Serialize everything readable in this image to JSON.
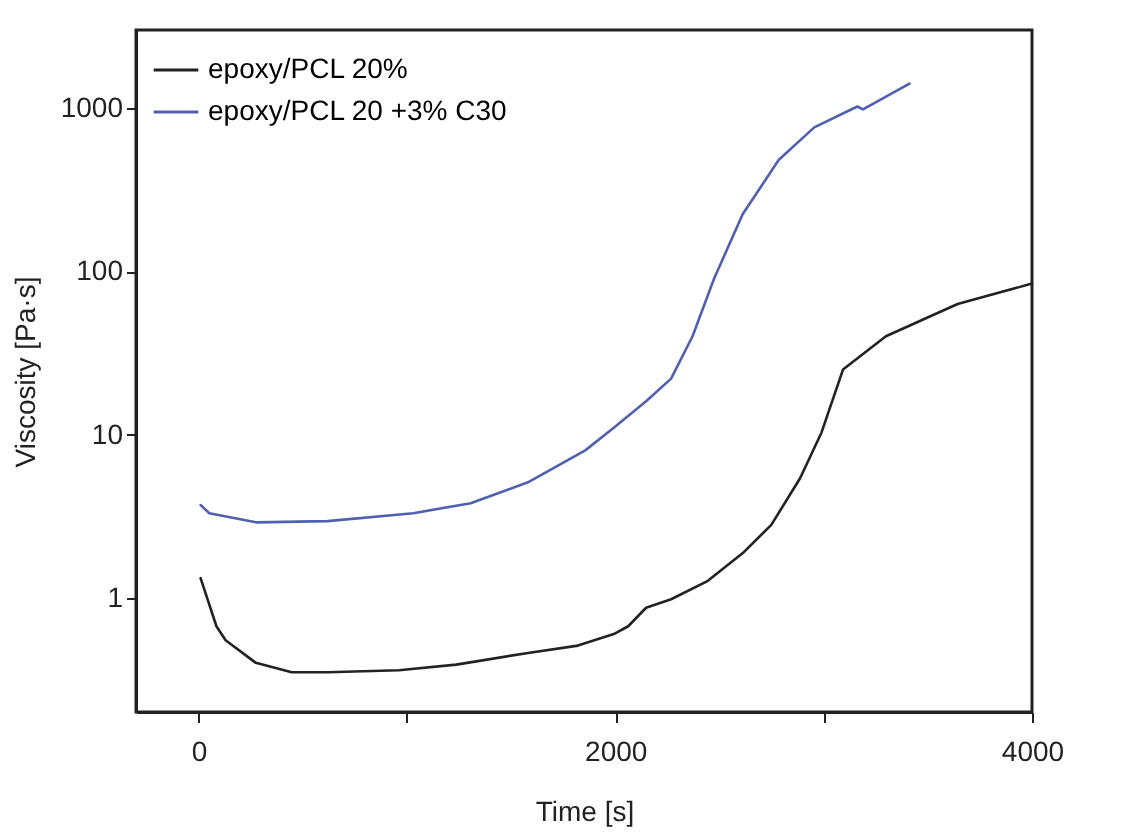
{
  "chart_data": {
    "type": "line",
    "xlabel": "Time [s]",
    "ylabel": "Viscosity [Pa·s]",
    "log": "y",
    "xlim": [
      -300,
      4000
    ],
    "xticks": [
      0,
      {
        "value": 1000,
        "label": null
      },
      2000,
      {
        "value": 3000,
        "label": null
      },
      4000
    ],
    "ylim": [
      0.2,
      3000
    ],
    "yticks": [
      1,
      10,
      100,
      1000
    ],
    "grid": false,
    "legend": "top left",
    "series": [
      {
        "name": "epoxy/PCL 20%",
        "color": "#222222",
        "x": [
          10,
          86,
          130,
          275,
          447,
          619,
          962,
          1237,
          1581,
          1821,
          1993,
          2062,
          2148,
          2268,
          2440,
          2612,
          2749,
          2887,
          2990,
          3093,
          3299,
          3643,
          4000
        ],
        "values": [
          1.32,
          0.67,
          0.55,
          0.4,
          0.35,
          0.35,
          0.36,
          0.39,
          0.46,
          0.51,
          0.6,
          0.67,
          0.87,
          0.98,
          1.26,
          1.88,
          2.8,
          5.4,
          10.3,
          25,
          40,
          63,
          84
        ]
      },
      {
        "name": "epoxy/PCL 20 +3% C30",
        "color": "#5060b0",
        "x": [
          10,
          52,
          275,
          619,
          1031,
          1306,
          1581,
          1856,
          1993,
          2148,
          2268,
          2371,
          2474,
          2612,
          2784,
          2955,
          3162,
          3189,
          3412
        ],
        "values": [
          3.7,
          3.3,
          2.9,
          2.95,
          3.3,
          3.8,
          5.1,
          8,
          11,
          16,
          22,
          40,
          90,
          224,
          480,
          760,
          1020,
          980,
          1410
        ]
      }
    ]
  }
}
